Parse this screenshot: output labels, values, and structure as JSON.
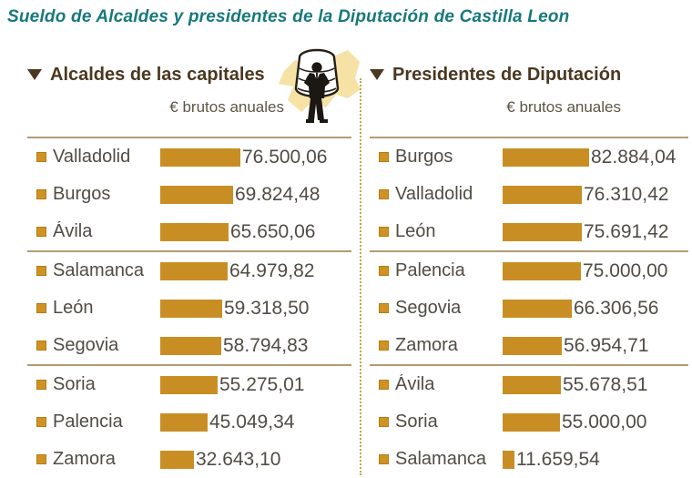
{
  "page_title": "Sueldo de Alcaldes y presidentes de la Diputación de Castilla Leon",
  "colors": {
    "title_teal": "#17797B",
    "header_brown": "#4A3820",
    "body_text": "#514C44",
    "bar_gold": "#C98E23",
    "bullet_gold": "#D09322",
    "rule_tan": "#B49B73",
    "dotted_divider": "#C9A44C",
    "map_yellow": "#F6E2A5"
  },
  "icons": {
    "section_marker": "triangle-down-icon",
    "row_marker": "square-bullet-icon",
    "center_art": "moneybag-figure-illustration"
  },
  "chart_data": [
    {
      "type": "bar",
      "orientation": "horizontal",
      "title": "Alcaldes de las capitales",
      "unit": "€ brutos anuales",
      "categories": [
        "Valladolid",
        "Burgos",
        "Ávila",
        "Salamanca",
        "León",
        "Segovia",
        "Soria",
        "Palencia",
        "Zamora"
      ],
      "values": [
        76500.06,
        69824.48,
        65650.06,
        64979.82,
        59318.5,
        58794.83,
        55275.01,
        45049.34,
        32643.1
      ],
      "value_labels": [
        "76.500,06",
        "69.824,48",
        "65.650,06",
        "64.979,82",
        "59.318,50",
        "58.794,83",
        "55.275,01",
        "45.049,34",
        "32.643,10"
      ],
      "xlim": [
        0,
        82884.04
      ],
      "grid": false,
      "group_size": 3
    },
    {
      "type": "bar",
      "orientation": "horizontal",
      "title": "Presidentes de Diputación",
      "unit": "€ brutos anuales",
      "categories": [
        "Burgos",
        "Valladolid",
        "León",
        "Palencia",
        "Segovia",
        "Zamora",
        "Ávila",
        "Soria",
        "Salamanca"
      ],
      "values": [
        82884.04,
        76310.42,
        75691.42,
        75000.0,
        66306.56,
        56954.71,
        55678.51,
        55000.0,
        11659.54
      ],
      "value_labels": [
        "82.884,04",
        "76.310,42",
        "75.691,42",
        "75.000,00",
        "66.306,56",
        "56.954,71",
        "55.678,51",
        "55.000,00",
        "11.659,54"
      ],
      "xlim": [
        0,
        82884.04
      ],
      "grid": false,
      "group_size": 3
    }
  ]
}
